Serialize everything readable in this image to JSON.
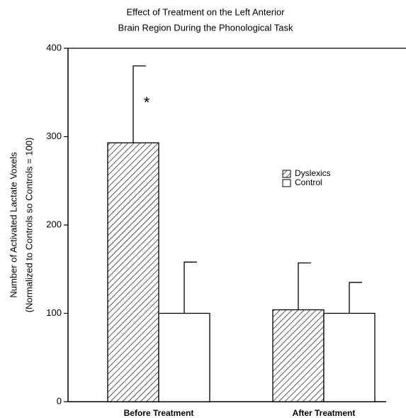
{
  "chart_data": {
    "type": "bar",
    "title": [
      "Effect of Treatment on the Left Anterior",
      "Brain Region During the Phonological Task"
    ],
    "ylabel": [
      "Number of Activated Lactate Voxels",
      "(Normalized to Controls so Controls = 100)"
    ],
    "categories": [
      "Before Treatment",
      "After Treatment"
    ],
    "series": [
      {
        "name": "Dyslexics",
        "color": "#000000",
        "pattern": "hatch",
        "values": [
          293,
          104
        ],
        "errors": [
          87,
          53
        ]
      },
      {
        "name": "Control",
        "color": "#ffffff",
        "values": [
          100,
          100
        ],
        "errors": [
          58,
          35
        ]
      }
    ],
    "annotations": [
      {
        "text": "*"
      }
    ],
    "ylim": [
      0,
      400
    ],
    "yticks": [
      0,
      100,
      200,
      300,
      400
    ]
  }
}
